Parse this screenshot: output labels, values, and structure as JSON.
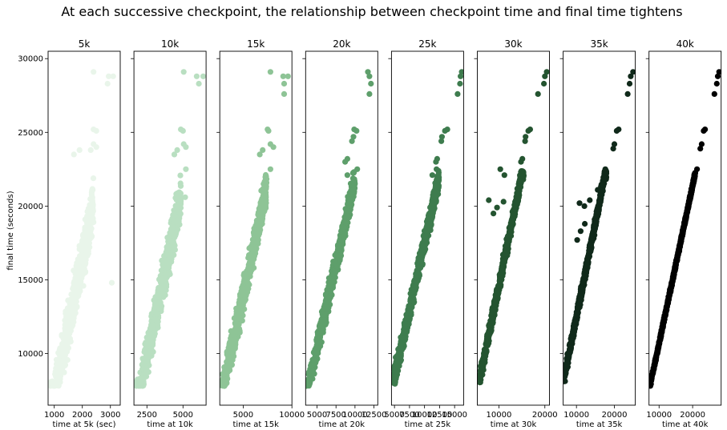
{
  "suptitle": "At each successive checkpoint, the relationship between checkpoint time and final time tightens",
  "ylabel": "final time (seconds)",
  "yticks": [
    10000,
    15000,
    20000,
    25000,
    30000
  ],
  "ylim": [
    6500,
    30500
  ],
  "chart_data": [
    {
      "type": "scatter",
      "title": "5k",
      "xlabel": "time at 5k (sec)",
      "xlim": [
        780,
        3350
      ],
      "xticks": [
        1000,
        2000,
        3000
      ],
      "color": "#e9f5ea",
      "mass": {
        "slope": 9.2,
        "intercept": -2000,
        "xmin": 860,
        "xmax": 2400,
        "spread": 2300
      },
      "outliers": [
        [
          2400,
          29100
        ],
        [
          2940,
          28800
        ],
        [
          3100,
          28800
        ],
        [
          2900,
          28300
        ],
        [
          2400,
          25200
        ],
        [
          2500,
          25100
        ],
        [
          2400,
          24200
        ],
        [
          2500,
          24000
        ],
        [
          2300,
          23800
        ],
        [
          1900,
          23800
        ],
        [
          1700,
          23500
        ],
        [
          3050,
          14800
        ]
      ]
    },
    {
      "type": "scatter",
      "title": "10k",
      "xlabel": "time at 10k",
      "xlim": [
        1600,
        6600
      ],
      "xticks": [
        2500,
        5000
      ],
      "color": "#b9dfc1",
      "mass": {
        "slope": 4.6,
        "intercept": -1700,
        "xmin": 1720,
        "xmax": 4850,
        "spread": 2000
      },
      "outliers": [
        [
          5050,
          29100
        ],
        [
          5950,
          28800
        ],
        [
          6400,
          28800
        ],
        [
          6100,
          28300
        ],
        [
          4850,
          25200
        ],
        [
          5000,
          25100
        ],
        [
          5050,
          24200
        ],
        [
          5200,
          24000
        ],
        [
          4600,
          23800
        ],
        [
          4400,
          23500
        ],
        [
          5200,
          22500
        ],
        [
          5150,
          20600
        ]
      ]
    },
    {
      "type": "scatter",
      "title": "15k",
      "xlabel": "time at 15k",
      "xlim": [
        2600,
        10000
      ],
      "xticks": [
        5000,
        10000
      ],
      "color": "#8ec496",
      "mass": {
        "slope": 3.05,
        "intercept": -1300,
        "xmin": 2700,
        "xmax": 7400,
        "spread": 1600
      },
      "outliers": [
        [
          7800,
          29100
        ],
        [
          9100,
          28800
        ],
        [
          9600,
          28800
        ],
        [
          9200,
          28300
        ],
        [
          9200,
          27600
        ],
        [
          7500,
          25200
        ],
        [
          7600,
          25100
        ],
        [
          7800,
          24200
        ],
        [
          8100,
          24000
        ],
        [
          7000,
          23800
        ],
        [
          6700,
          23500
        ],
        [
          7800,
          22500
        ]
      ]
    },
    {
      "type": "scatter",
      "title": "20k",
      "xlabel": "time at 20k",
      "xlim": [
        3500,
        13000
      ],
      "xticks": [
        5000,
        7500,
        10000,
        12500
      ],
      "color": "#5e9f6b",
      "mass": {
        "slope": 2.28,
        "intercept": -1000,
        "xmin": 3600,
        "xmax": 10000,
        "spread": 1300
      },
      "outliers": [
        [
          11700,
          29100
        ],
        [
          11900,
          28800
        ],
        [
          12100,
          28300
        ],
        [
          11900,
          27600
        ],
        [
          9900,
          25200
        ],
        [
          10200,
          25100
        ],
        [
          9800,
          24700
        ],
        [
          9600,
          24400
        ],
        [
          9000,
          23200
        ],
        [
          8700,
          23000
        ],
        [
          10300,
          22500
        ],
        [
          9000,
          22100
        ]
      ]
    },
    {
      "type": "scatter",
      "title": "25k",
      "xlabel": "time at 25k",
      "xlim": [
        4500,
        16500
      ],
      "xticks": [
        5000,
        7500,
        10000,
        12500,
        15000
      ],
      "color": "#3e7c4e",
      "mass": {
        "slope": 1.82,
        "intercept": -700,
        "xmin": 4700,
        "xmax": 12400,
        "spread": 1100
      },
      "outliers": [
        [
          16200,
          29100
        ],
        [
          16000,
          28800
        ],
        [
          15900,
          28300
        ],
        [
          15500,
          27600
        ],
        [
          13800,
          25200
        ],
        [
          13400,
          25100
        ],
        [
          12900,
          24700
        ],
        [
          12800,
          24400
        ],
        [
          12100,
          23200
        ],
        [
          11900,
          23000
        ],
        [
          12000,
          22500
        ],
        [
          11300,
          22100
        ]
      ]
    },
    {
      "type": "scatter",
      "title": "30k",
      "xlabel": "time at 30k",
      "xlim": [
        5300,
        21000
      ],
      "xticks": [
        10000,
        20000
      ],
      "color": "#245430",
      "mass": {
        "slope": 1.51,
        "intercept": -500,
        "xmin": 5600,
        "xmax": 15400,
        "spread": 800
      },
      "outliers": [
        [
          20400,
          29100
        ],
        [
          20000,
          28800
        ],
        [
          19800,
          28300
        ],
        [
          18500,
          27600
        ],
        [
          16800,
          25200
        ],
        [
          16400,
          25100
        ],
        [
          15800,
          24700
        ],
        [
          15700,
          24400
        ],
        [
          15100,
          23200
        ],
        [
          14800,
          23000
        ],
        [
          10300,
          22500
        ],
        [
          11200,
          22100
        ],
        [
          11000,
          20300
        ],
        [
          9600,
          19900
        ],
        [
          8800,
          19500
        ],
        [
          7800,
          20400
        ]
      ]
    },
    {
      "type": "scatter",
      "title": "35k",
      "xlabel": "time at 35k",
      "xlim": [
        6500,
        25500
      ],
      "xticks": [
        10000,
        20000
      ],
      "color": "#10291a",
      "mass": {
        "slope": 1.28,
        "intercept": -300,
        "xmin": 6600,
        "xmax": 17900,
        "spread": 600
      },
      "outliers": [
        [
          24900,
          29100
        ],
        [
          24300,
          28800
        ],
        [
          24000,
          28300
        ],
        [
          23500,
          27600
        ],
        [
          21100,
          25200
        ],
        [
          20600,
          25100
        ],
        [
          20000,
          24200
        ],
        [
          19700,
          23900
        ],
        [
          17600,
          22500
        ],
        [
          15600,
          21100
        ],
        [
          13500,
          20400
        ],
        [
          12100,
          20000
        ],
        [
          10800,
          20200
        ],
        [
          12200,
          18800
        ],
        [
          11100,
          18300
        ],
        [
          10200,
          17700
        ]
      ]
    },
    {
      "type": "scatter",
      "title": "40k",
      "xlabel": "time at 40k",
      "xlim": [
        7000,
        28500
      ],
      "xticks": [
        10000,
        20000
      ],
      "color": "#000000",
      "mass": {
        "slope": 1.07,
        "intercept": 0,
        "xmin": 7300,
        "xmax": 20800,
        "spread": 250
      },
      "outliers": [
        [
          27900,
          29100
        ],
        [
          27500,
          28800
        ],
        [
          27200,
          28300
        ],
        [
          26500,
          27600
        ],
        [
          23700,
          25200
        ],
        [
          23300,
          25100
        ],
        [
          22700,
          24200
        ],
        [
          22300,
          23900
        ],
        [
          21300,
          22500
        ],
        [
          19800,
          21100
        ]
      ]
    }
  ]
}
